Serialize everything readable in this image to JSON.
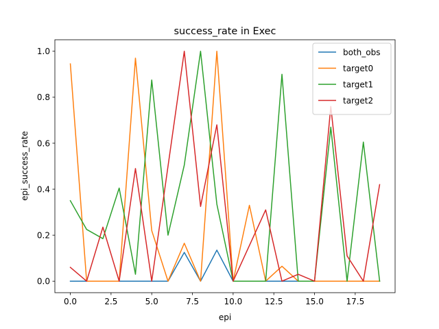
{
  "chart_data": {
    "type": "line",
    "title": "success_rate in Exec",
    "xlabel": "epi",
    "ylabel": "epi_success_rate",
    "xlim": [
      -0.95,
      19.95
    ],
    "ylim": [
      -0.05,
      1.05
    ],
    "xticks": [
      0.0,
      2.5,
      5.0,
      7.5,
      10.0,
      12.5,
      15.0,
      17.5
    ],
    "xtick_labels": [
      "0.0",
      "2.5",
      "5.0",
      "7.5",
      "10.0",
      "12.5",
      "15.0",
      "17.5"
    ],
    "yticks": [
      0.0,
      0.2,
      0.4,
      0.6,
      0.8,
      1.0
    ],
    "ytick_labels": [
      "0.0",
      "0.2",
      "0.4",
      "0.6",
      "0.8",
      "1.0"
    ],
    "legend_position": "top-right",
    "grid": false,
    "x": [
      0,
      1,
      2,
      3,
      4,
      5,
      6,
      7,
      8,
      9,
      10,
      11,
      12,
      13,
      14,
      15,
      16,
      17,
      18,
      19
    ],
    "series": [
      {
        "name": "both_obs",
        "color": "#1f77b4",
        "values": [
          0.0,
          0.0,
          0.0,
          0.0,
          0.0,
          0.0,
          0.0,
          0.125,
          0.0,
          0.135,
          0.0,
          0.0,
          0.0,
          0.0,
          0.0,
          0.0,
          0.0,
          0.0,
          0.0,
          0.0
        ]
      },
      {
        "name": "target0",
        "color": "#ff7f0e",
        "values": [
          0.945,
          0.0,
          0.0,
          0.0,
          0.97,
          0.22,
          0.0,
          0.165,
          0.0,
          1.0,
          0.0,
          0.33,
          0.0,
          0.065,
          0.0,
          0.0,
          0.0,
          0.0,
          0.0,
          0.0
        ]
      },
      {
        "name": "target1",
        "color": "#2ca02c",
        "values": [
          0.35,
          0.225,
          0.185,
          0.405,
          0.03,
          0.875,
          0.2,
          0.505,
          1.0,
          0.335,
          0.0,
          0.0,
          0.0,
          0.9,
          0.0,
          0.0,
          0.67,
          0.0,
          0.605,
          0.0
        ]
      },
      {
        "name": "target2",
        "color": "#d62728",
        "values": [
          0.06,
          0.0,
          0.235,
          0.0,
          0.49,
          0.0,
          0.5,
          1.0,
          0.325,
          0.68,
          0.0,
          0.155,
          0.31,
          0.0,
          0.03,
          0.0,
          0.76,
          0.11,
          0.0,
          0.42
        ]
      }
    ]
  }
}
